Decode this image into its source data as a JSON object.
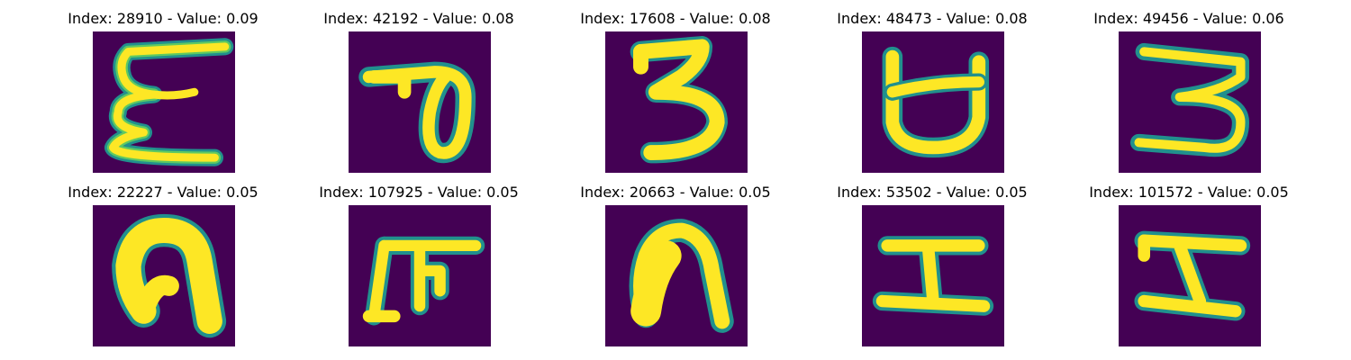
{
  "colors": {
    "background": "#440154",
    "stroke_outer": "#21908d",
    "stroke_mid": "#5ec962",
    "stroke_inner": "#fde725"
  },
  "panels": [
    {
      "title": "Index: 28910 - Value: 0.09",
      "glyph": "open-e-shape"
    },
    {
      "title": "Index: 42192 - Value: 0.08",
      "glyph": "loop-tail-shape"
    },
    {
      "title": "Index: 17608 - Value: 0.08",
      "glyph": "three-shape"
    },
    {
      "title": "Index: 48473 - Value: 0.08",
      "glyph": "cup-shape"
    },
    {
      "title": "Index: 49456 - Value: 0.06",
      "glyph": "three-shape"
    },
    {
      "title": "Index: 22227 - Value: 0.05",
      "glyph": "arch-shape"
    },
    {
      "title": "Index: 107925 - Value: 0.05",
      "glyph": "comb-shape"
    },
    {
      "title": "Index: 20663 - Value: 0.05",
      "glyph": "arch-shape"
    },
    {
      "title": "Index: 53502 - Value: 0.05",
      "glyph": "i-beam-shape"
    },
    {
      "title": "Index: 101572 - Value: 0.05",
      "glyph": "slanted-i-shape"
    }
  ]
}
